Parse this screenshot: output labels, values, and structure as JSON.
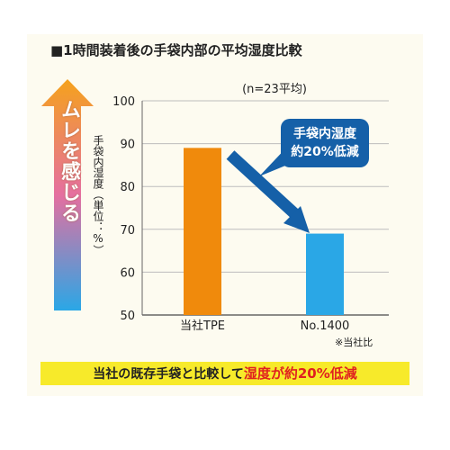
{
  "title": "■1時間装着後の手袋内部の平均湿度比較",
  "side_label": "ムレを感じる",
  "callout": {
    "line1": "手袋内湿度",
    "line2": "約20%低減"
  },
  "note": "※当社比",
  "banner": {
    "part1": "当社の既存手袋と比較して",
    "part2": "湿度が約20%低減"
  },
  "colors": {
    "bar_tpe": "#f08a0c",
    "bar_no1400": "#2aa7e6",
    "arrow": "#1560a8",
    "banner_bg": "#f7ea2a",
    "accent_red": "#e0211f"
  },
  "chart_data": {
    "type": "bar",
    "subtitle": "(n=23平均)",
    "ylabel": "手袋内湿度（単位：%）",
    "categories": [
      "当社TPE",
      "No.1400"
    ],
    "values": [
      89,
      69
    ],
    "ylim": [
      50,
      100
    ],
    "yticks": [
      50,
      60,
      70,
      80,
      90,
      100
    ],
    "grid": true
  }
}
